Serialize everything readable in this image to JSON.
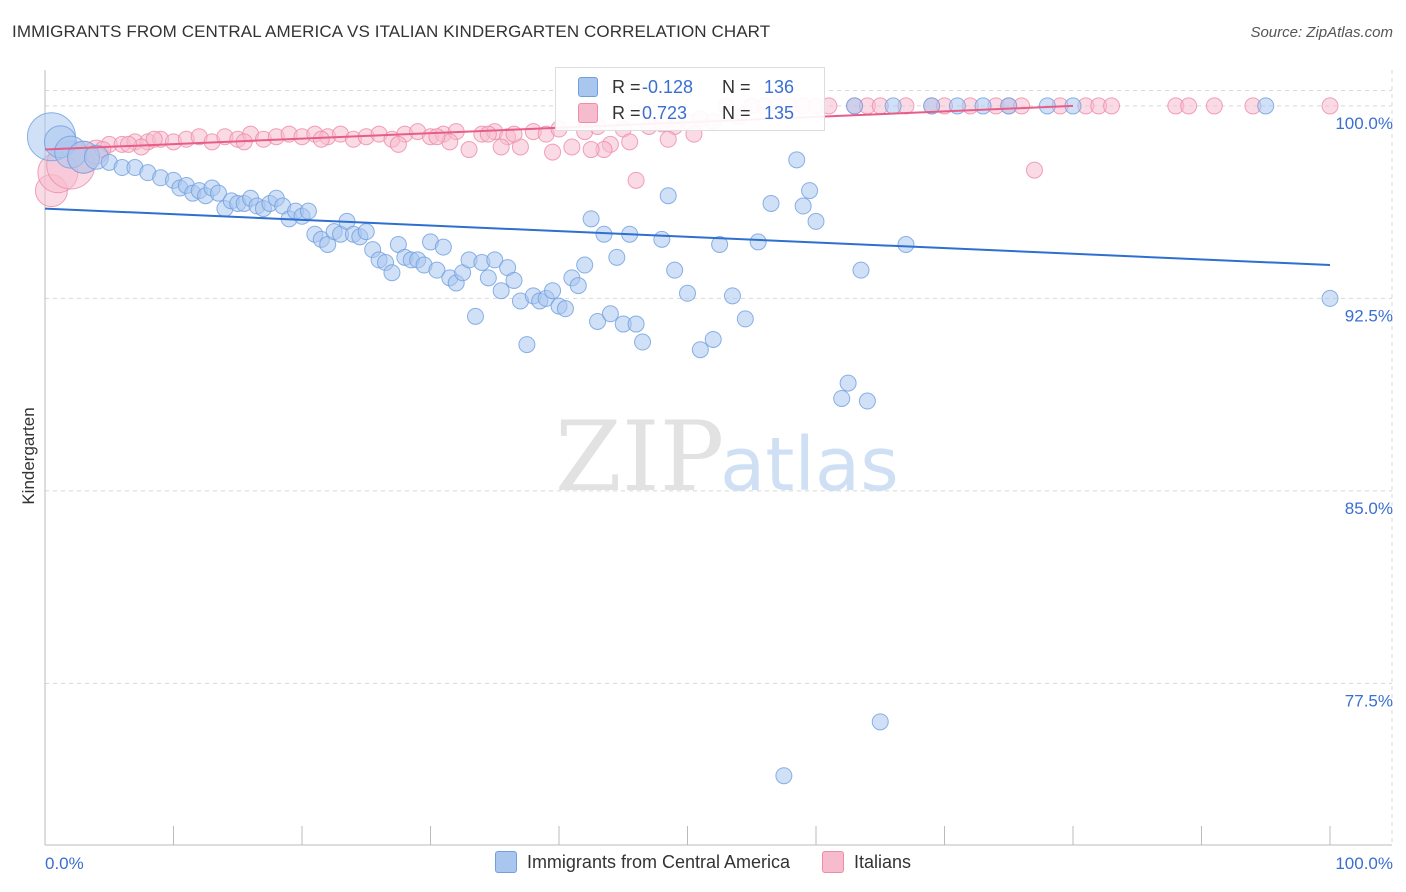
{
  "title": "IMMIGRANTS FROM CENTRAL AMERICA VS ITALIAN KINDERGARTEN CORRELATION CHART",
  "source": "Source: ZipAtlas.com",
  "watermark": {
    "zip": "ZIP",
    "atlas": "atlas"
  },
  "colors": {
    "blue": "#6f9fe0",
    "blue_fill": "#a9c6ef",
    "blue_line": "#2e6fd0",
    "pink": "#ef8aa9",
    "pink_fill": "#f6bccd",
    "pink_line": "#e85d88",
    "axis_text": "#3a6fd0",
    "grid": "#d8d8d8"
  },
  "legend_stats": [
    {
      "r_label": "R =",
      "r_value": "-0.128",
      "n_label": "N =",
      "n_value": "136"
    },
    {
      "r_label": "R =",
      "r_value": "0.723",
      "n_label": "N =",
      "n_value": "135"
    }
  ],
  "chart_data": {
    "type": "scatter",
    "title": "IMMIGRANTS FROM CENTRAL AMERICA VS ITALIAN KINDERGARTEN CORRELATION CHART",
    "xlabel": "",
    "ylabel": "Kindergarten",
    "xlim": [
      0,
      100
    ],
    "ylim": [
      71.2,
      101.4
    ],
    "x_tick_labels": [
      "0.0%",
      "100.0%"
    ],
    "y_ticks": [
      100.0,
      92.5,
      85.0,
      77.5
    ],
    "y_tick_labels": [
      "100.0%",
      "92.5%",
      "85.0%",
      "77.5%"
    ],
    "grid": true,
    "legend_position": "bottom-center",
    "series": [
      {
        "name": "Immigrants from Central America",
        "color": "blue",
        "trend": {
          "x": [
            0,
            100
          ],
          "y": [
            96.0,
            93.8
          ]
        },
        "points": [
          [
            0.5,
            98.8,
            3
          ],
          [
            1.2,
            98.6,
            2
          ],
          [
            2,
            98.2,
            2
          ],
          [
            3,
            98.0,
            2
          ],
          [
            4,
            98.0,
            1.5
          ],
          [
            5,
            97.8,
            1
          ],
          [
            6,
            97.6,
            1
          ],
          [
            7,
            97.6,
            1
          ],
          [
            8,
            97.4,
            1
          ],
          [
            9,
            97.2,
            1
          ],
          [
            10,
            97.1,
            1
          ],
          [
            10.5,
            96.8,
            1
          ],
          [
            11,
            96.9,
            1
          ],
          [
            11.5,
            96.6,
            1
          ],
          [
            12,
            96.7,
            1
          ],
          [
            12.5,
            96.5,
            1
          ],
          [
            13,
            96.8,
            1
          ],
          [
            13.5,
            96.6,
            1
          ],
          [
            14,
            96.0,
            1
          ],
          [
            14.5,
            96.3,
            1
          ],
          [
            15,
            96.2,
            1
          ],
          [
            15.5,
            96.2,
            1
          ],
          [
            16,
            96.4,
            1
          ],
          [
            16.5,
            96.1,
            1
          ],
          [
            17,
            96.0,
            1
          ],
          [
            17.5,
            96.2,
            1
          ],
          [
            18,
            96.4,
            1
          ],
          [
            18.5,
            96.1,
            1
          ],
          [
            19,
            95.6,
            1
          ],
          [
            19.5,
            95.9,
            1
          ],
          [
            20,
            95.7,
            1
          ],
          [
            20.5,
            95.9,
            1
          ],
          [
            21,
            95.0,
            1
          ],
          [
            21.5,
            94.8,
            1
          ],
          [
            22,
            94.6,
            1
          ],
          [
            22.5,
            95.1,
            1
          ],
          [
            23,
            95.0,
            1
          ],
          [
            23.5,
            95.5,
            1
          ],
          [
            24,
            95.0,
            1
          ],
          [
            24.5,
            94.9,
            1
          ],
          [
            25,
            95.1,
            1
          ],
          [
            25.5,
            94.4,
            1
          ],
          [
            26,
            94.0,
            1
          ],
          [
            26.5,
            93.9,
            1
          ],
          [
            27,
            93.5,
            1
          ],
          [
            27.5,
            94.6,
            1
          ],
          [
            28,
            94.1,
            1
          ],
          [
            28.5,
            94.0,
            1
          ],
          [
            29,
            94.0,
            1
          ],
          [
            29.5,
            93.8,
            1
          ],
          [
            30,
            94.7,
            1
          ],
          [
            30.5,
            93.6,
            1
          ],
          [
            31,
            94.5,
            1
          ],
          [
            31.5,
            93.3,
            1
          ],
          [
            32,
            93.1,
            1
          ],
          [
            32.5,
            93.5,
            1
          ],
          [
            33,
            94.0,
            1
          ],
          [
            33.5,
            91.8,
            1
          ],
          [
            34,
            93.9,
            1
          ],
          [
            34.5,
            93.3,
            1
          ],
          [
            35,
            94.0,
            1
          ],
          [
            35.5,
            92.8,
            1
          ],
          [
            36,
            93.7,
            1
          ],
          [
            36.5,
            93.2,
            1
          ],
          [
            37,
            92.4,
            1
          ],
          [
            37.5,
            90.7,
            1
          ],
          [
            38,
            92.6,
            1
          ],
          [
            38.5,
            92.4,
            1
          ],
          [
            39,
            92.5,
            1
          ],
          [
            39.5,
            92.8,
            1
          ],
          [
            40,
            92.2,
            1
          ],
          [
            40.5,
            92.1,
            1
          ],
          [
            41,
            93.3,
            1
          ],
          [
            41.5,
            93.0,
            1
          ],
          [
            42,
            93.8,
            1
          ],
          [
            42.5,
            95.6,
            1
          ],
          [
            43,
            91.6,
            1
          ],
          [
            43.5,
            95.0,
            1
          ],
          [
            44,
            91.9,
            1
          ],
          [
            44.5,
            94.1,
            1
          ],
          [
            45,
            91.5,
            1
          ],
          [
            45.5,
            95.0,
            1
          ],
          [
            46,
            91.5,
            1
          ],
          [
            46.5,
            90.8,
            1
          ],
          [
            48,
            94.8,
            1
          ],
          [
            48.5,
            96.5,
            1
          ],
          [
            49,
            93.6,
            1
          ],
          [
            50,
            92.7,
            1
          ],
          [
            51,
            90.5,
            1
          ],
          [
            52,
            90.9,
            1
          ],
          [
            52.5,
            94.6,
            1
          ],
          [
            53.5,
            92.6,
            1
          ],
          [
            54.5,
            91.7,
            1
          ],
          [
            55.5,
            94.7,
            1
          ],
          [
            56.5,
            96.2,
            1
          ],
          [
            57.5,
            73.9,
            1
          ],
          [
            58.5,
            97.9,
            1
          ],
          [
            59,
            96.1,
            1
          ],
          [
            59.5,
            96.7,
            1
          ],
          [
            60,
            95.5,
            1
          ],
          [
            62,
            88.6,
            1
          ],
          [
            62.5,
            89.2,
            1
          ],
          [
            63.5,
            93.6,
            1
          ],
          [
            64,
            88.5,
            1
          ],
          [
            65,
            76.0,
            1
          ],
          [
            67,
            94.6,
            1
          ],
          [
            63,
            100.0,
            1
          ],
          [
            66,
            100.0,
            1
          ],
          [
            69,
            100.0,
            1
          ],
          [
            71,
            100.0,
            1
          ],
          [
            73,
            100.0,
            1
          ],
          [
            75,
            100.0,
            1
          ],
          [
            78,
            100.0,
            1
          ],
          [
            80,
            100.0,
            1
          ],
          [
            100,
            92.5,
            1
          ],
          [
            95,
            100.0,
            1
          ]
        ]
      },
      {
        "name": "Italians",
        "color": "pink",
        "trend": {
          "x": [
            0,
            80
          ],
          "y": [
            98.3,
            100.0
          ]
        },
        "points": [
          [
            0.5,
            96.7,
            2
          ],
          [
            1,
            97.4,
            2.5
          ],
          [
            2,
            97.7,
            3
          ],
          [
            3,
            98.0,
            2
          ],
          [
            4,
            98.2,
            1.5
          ],
          [
            5,
            98.5,
            1
          ],
          [
            6,
            98.5,
            1
          ],
          [
            7,
            98.6,
            1
          ],
          [
            8,
            98.6,
            1
          ],
          [
            9,
            98.7,
            1
          ],
          [
            10,
            98.6,
            1
          ],
          [
            11,
            98.7,
            1
          ],
          [
            12,
            98.8,
            1
          ],
          [
            13,
            98.6,
            1
          ],
          [
            14,
            98.8,
            1
          ],
          [
            15,
            98.7,
            1
          ],
          [
            16,
            98.9,
            1
          ],
          [
            17,
            98.7,
            1
          ],
          [
            18,
            98.8,
            1
          ],
          [
            19,
            98.9,
            1
          ],
          [
            20,
            98.8,
            1
          ],
          [
            21,
            98.9,
            1
          ],
          [
            22,
            98.8,
            1
          ],
          [
            23,
            98.9,
            1
          ],
          [
            24,
            98.7,
            1
          ],
          [
            25,
            98.8,
            1
          ],
          [
            26,
            98.9,
            1
          ],
          [
            27,
            98.7,
            1
          ],
          [
            28,
            98.9,
            1
          ],
          [
            29,
            99.0,
            1
          ],
          [
            30,
            98.8,
            1
          ],
          [
            31,
            98.9,
            1
          ],
          [
            32,
            99.0,
            1
          ],
          [
            33,
            98.3,
            1
          ],
          [
            34,
            98.9,
            1
          ],
          [
            35,
            99.0,
            1
          ],
          [
            36,
            98.8,
            1
          ],
          [
            37,
            98.4,
            1
          ],
          [
            38,
            99.0,
            1
          ],
          [
            39,
            98.9,
            1
          ],
          [
            40,
            99.1,
            1
          ],
          [
            41,
            98.4,
            1
          ],
          [
            42,
            99.0,
            1
          ],
          [
            43,
            99.2,
            1
          ],
          [
            44,
            98.5,
            1
          ],
          [
            45,
            99.1,
            1
          ],
          [
            46,
            97.1,
            1
          ],
          [
            47,
            99.2,
            1
          ],
          [
            48,
            99.3,
            1
          ],
          [
            49,
            99.2,
            1
          ],
          [
            50,
            99.4,
            1
          ],
          [
            51,
            99.5,
            1
          ],
          [
            52,
            99.4,
            1
          ],
          [
            53,
            100.0,
            1
          ],
          [
            54,
            99.6,
            1
          ],
          [
            55,
            100.0,
            1
          ],
          [
            56,
            100.0,
            1
          ],
          [
            57,
            100.0,
            1
          ],
          [
            58,
            100.0,
            1
          ],
          [
            59,
            100.0,
            1
          ],
          [
            60,
            100.0,
            1
          ],
          [
            61,
            100.0,
            1
          ],
          [
            63,
            100.0,
            1
          ],
          [
            64,
            100.0,
            1
          ],
          [
            65,
            100.0,
            1
          ],
          [
            67,
            100.0,
            1
          ],
          [
            69,
            100.0,
            1
          ],
          [
            70,
            100.0,
            1
          ],
          [
            72,
            100.0,
            1
          ],
          [
            74,
            100.0,
            1
          ],
          [
            75,
            100.0,
            1
          ],
          [
            76,
            100.0,
            1
          ],
          [
            77,
            97.5,
            1
          ],
          [
            79,
            100.0,
            1
          ],
          [
            81,
            100.0,
            1
          ],
          [
            82,
            100.0,
            1
          ],
          [
            83,
            100.0,
            1
          ],
          [
            88,
            100.0,
            1
          ],
          [
            89,
            100.0,
            1
          ],
          [
            91,
            100.0,
            1
          ],
          [
            94,
            100.0,
            1
          ],
          [
            100,
            100.0,
            1
          ],
          [
            35.5,
            98.4,
            1
          ],
          [
            15.5,
            98.6,
            1
          ],
          [
            7.5,
            98.4,
            1
          ],
          [
            27.5,
            98.5,
            1
          ],
          [
            39.5,
            98.2,
            1
          ],
          [
            43.5,
            98.3,
            1
          ],
          [
            50.5,
            98.9,
            1
          ],
          [
            34.5,
            98.9,
            1
          ],
          [
            42.5,
            98.3,
            1
          ],
          [
            31.5,
            98.6,
            1
          ],
          [
            8.5,
            98.7,
            1
          ],
          [
            30.5,
            98.8,
            1
          ],
          [
            48.5,
            98.7,
            1
          ],
          [
            4.5,
            98.3,
            1
          ],
          [
            6.5,
            98.5,
            1
          ],
          [
            21.5,
            98.7,
            1
          ],
          [
            36.5,
            98.9,
            1
          ],
          [
            45.5,
            98.6,
            1
          ]
        ]
      }
    ]
  }
}
